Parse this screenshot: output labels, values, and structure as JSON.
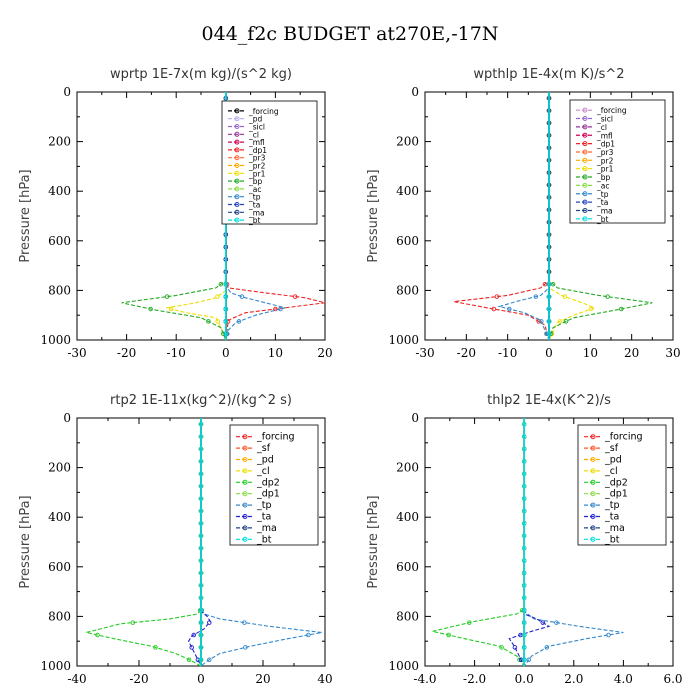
{
  "suptitle": "044_f2c  BUDGET at270E,-17N",
  "chart_data": [
    {
      "type": "line",
      "title": "wprtp   1E-7x(m kg)/(s^2 kg)",
      "ylabel": "Pressure [hPa]",
      "xlim": [
        -30,
        20
      ],
      "ylim": [
        1000,
        0
      ],
      "xticks": [
        "-30",
        "-20",
        "-10",
        "0",
        "10",
        "20"
      ],
      "yticks": [
        "0",
        "200",
        "400",
        "600",
        "800",
        "1000"
      ],
      "legend": "top-right",
      "series": [
        {
          "name": "_forcing",
          "color": "#000000",
          "x": [
            0,
            0
          ],
          "y": [
            0,
            1000
          ]
        },
        {
          "name": "_pd",
          "color": "#bbaaee",
          "x": [
            0,
            0
          ],
          "y": [
            0,
            1000
          ]
        },
        {
          "name": "_sicl",
          "color": "#9966cc",
          "x": [
            0,
            0
          ],
          "y": [
            0,
            1000
          ]
        },
        {
          "name": "_cl",
          "color": "#993399",
          "x": [
            0,
            0
          ],
          "y": [
            0,
            1000
          ]
        },
        {
          "name": "_mfl",
          "color": "#cc0055",
          "x": [
            0,
            0
          ],
          "y": [
            0,
            1000
          ]
        },
        {
          "name": "_dp1",
          "color": "#ee2222",
          "x": [
            0,
            0,
            0.5,
            8,
            16,
            20,
            12,
            4,
            0.5,
            0
          ],
          "y": [
            0,
            760,
            790,
            810,
            830,
            850,
            870,
            890,
            920,
            1000
          ]
        },
        {
          "name": "_pr3",
          "color": "#ff6633",
          "x": [
            0,
            0
          ],
          "y": [
            0,
            1000
          ]
        },
        {
          "name": "_pr2",
          "color": "#ffaa00",
          "x": [
            0,
            0
          ],
          "y": [
            0,
            1000
          ]
        },
        {
          "name": "_pr1",
          "color": "#eedd00",
          "x": [
            0,
            0,
            -2,
            -6,
            -12,
            -8,
            -2,
            -1,
            0
          ],
          "y": [
            0,
            800,
            830,
            850,
            870,
            890,
            910,
            950,
            1000
          ]
        },
        {
          "name": "_bp",
          "color": "#22aa22",
          "x": [
            0,
            0,
            -2,
            -10,
            -21,
            -14,
            -5,
            -1,
            0
          ],
          "y": [
            0,
            760,
            790,
            820,
            850,
            880,
            910,
            950,
            1000
          ]
        },
        {
          "name": "_ac",
          "color": "#88dd44",
          "x": [
            0,
            0
          ],
          "y": [
            0,
            1000
          ]
        },
        {
          "name": "_tp",
          "color": "#3388cc",
          "x": [
            0,
            0,
            1,
            4,
            8,
            12,
            6,
            2,
            0.5,
            0
          ],
          "y": [
            0,
            780,
            810,
            830,
            850,
            870,
            900,
            930,
            960,
            1000
          ]
        },
        {
          "name": "_ta",
          "color": "#2244bb",
          "x": [
            0,
            0
          ],
          "y": [
            0,
            1000
          ]
        },
        {
          "name": "_ma",
          "color": "#224488",
          "x": [
            0,
            0
          ],
          "y": [
            0,
            1000
          ]
        },
        {
          "name": "_bt",
          "color": "#00dddd",
          "x": [
            0,
            0
          ],
          "y": [
            0,
            1000
          ]
        }
      ]
    },
    {
      "type": "line",
      "title": "wpthlp   1E-4x(m K)/s^2",
      "ylabel": "Pressure [hPa]",
      "xlim": [
        -30,
        30
      ],
      "ylim": [
        1000,
        0
      ],
      "xticks": [
        "-30",
        "-20",
        "-10",
        "0",
        "10",
        "20",
        "30"
      ],
      "yticks": [
        "0",
        "200",
        "400",
        "600",
        "800",
        "1000"
      ],
      "legend": "top-right",
      "series": [
        {
          "name": "_forcing",
          "color": "#cc88cc",
          "x": [
            0,
            0
          ],
          "y": [
            0,
            1000
          ]
        },
        {
          "name": "_sicl",
          "color": "#9966cc",
          "x": [
            0,
            0
          ],
          "y": [
            0,
            1000
          ]
        },
        {
          "name": "_cl",
          "color": "#993399",
          "x": [
            0,
            0
          ],
          "y": [
            0,
            1000
          ]
        },
        {
          "name": "_mfl",
          "color": "#cc0055",
          "x": [
            0,
            0
          ],
          "y": [
            0,
            1000
          ]
        },
        {
          "name": "_dp1",
          "color": "#ee2222",
          "x": [
            0,
            0,
            -2,
            -10,
            -23,
            -15,
            -5,
            -1,
            0
          ],
          "y": [
            0,
            760,
            790,
            820,
            845,
            870,
            900,
            940,
            1000
          ]
        },
        {
          "name": "_pr3",
          "color": "#ff6633",
          "x": [
            0,
            0
          ],
          "y": [
            0,
            1000
          ]
        },
        {
          "name": "_pr2",
          "color": "#ffaa00",
          "x": [
            0,
            0
          ],
          "y": [
            0,
            1000
          ]
        },
        {
          "name": "_pr1",
          "color": "#eedd00",
          "x": [
            0,
            0,
            3,
            8,
            11,
            6,
            2,
            0
          ],
          "y": [
            0,
            790,
            820,
            850,
            870,
            900,
            930,
            1000
          ]
        },
        {
          "name": "_bp",
          "color": "#22aa22",
          "x": [
            0,
            0,
            2,
            12,
            25,
            16,
            6,
            1,
            0
          ],
          "y": [
            0,
            760,
            790,
            820,
            850,
            880,
            910,
            950,
            1000
          ]
        },
        {
          "name": "_ac",
          "color": "#88dd44",
          "x": [
            0,
            0
          ],
          "y": [
            0,
            1000
          ]
        },
        {
          "name": "_tp",
          "color": "#3388cc",
          "x": [
            0,
            0,
            -2,
            -8,
            -12,
            -6,
            -2,
            0
          ],
          "y": [
            0,
            790,
            820,
            845,
            865,
            890,
            920,
            1000
          ]
        },
        {
          "name": "_ta",
          "color": "#2244bb",
          "x": [
            0,
            0
          ],
          "y": [
            0,
            1000
          ]
        },
        {
          "name": "_ma",
          "color": "#224488",
          "x": [
            0,
            0
          ],
          "y": [
            0,
            1000
          ]
        },
        {
          "name": "_bt",
          "color": "#00dddd",
          "x": [
            0,
            0
          ],
          "y": [
            0,
            1000
          ]
        }
      ]
    },
    {
      "type": "line",
      "title": "rtp2   1E-11x(kg^2)/(kg^2 s)",
      "ylabel": "Pressure [hPa]",
      "xlim": [
        -40,
        40
      ],
      "ylim": [
        1000,
        0
      ],
      "xticks": [
        "-40",
        "-20",
        "0",
        "20",
        "40"
      ],
      "yticks": [
        "0",
        "200",
        "400",
        "600",
        "800",
        "1000"
      ],
      "legend": "top-right",
      "series": [
        {
          "name": "_forcing",
          "color": "#ee2222",
          "x": [
            0,
            0
          ],
          "y": [
            0,
            1000
          ]
        },
        {
          "name": "_sf",
          "color": "#ff5522",
          "x": [
            0,
            0
          ],
          "y": [
            0,
            1000
          ]
        },
        {
          "name": "_pd",
          "color": "#ffaa00",
          "x": [
            0,
            0
          ],
          "y": [
            0,
            1000
          ]
        },
        {
          "name": "_cl",
          "color": "#eedd00",
          "x": [
            0,
            0
          ],
          "y": [
            0,
            1000
          ]
        },
        {
          "name": "_dp2",
          "color": "#22cc22",
          "x": [
            0,
            0,
            -1,
            -10,
            -26,
            -37,
            -28,
            -16,
            -8,
            -3,
            0
          ],
          "y": [
            0,
            770,
            790,
            810,
            830,
            865,
            890,
            920,
            950,
            980,
            1000
          ]
        },
        {
          "name": "_dp1",
          "color": "#88dd44",
          "x": [
            0,
            0
          ],
          "y": [
            0,
            1000
          ]
        },
        {
          "name": "_tp",
          "color": "#3388cc",
          "x": [
            0,
            0,
            1,
            6,
            22,
            39,
            28,
            16,
            6,
            2,
            0
          ],
          "y": [
            0,
            770,
            790,
            810,
            840,
            865,
            890,
            920,
            950,
            980,
            1000
          ]
        },
        {
          "name": "_ta",
          "color": "#2222cc",
          "x": [
            0,
            0,
            2,
            3,
            1,
            -3,
            -4,
            -2,
            0
          ],
          "y": [
            0,
            780,
            800,
            820,
            850,
            880,
            900,
            950,
            1000
          ]
        },
        {
          "name": "_ma",
          "color": "#224488",
          "x": [
            0,
            0
          ],
          "y": [
            0,
            1000
          ]
        },
        {
          "name": "_bt",
          "color": "#00dddd",
          "x": [
            0,
            0
          ],
          "y": [
            0,
            1000
          ]
        }
      ]
    },
    {
      "type": "line",
      "title": "thlp2   1E-4x(K^2)/s",
      "ylabel": "Pressure [hPa]",
      "xlim": [
        -4,
        6
      ],
      "ylim": [
        1000,
        0
      ],
      "xticks": [
        "-4.0",
        "-2.0",
        "0.0",
        "2.0",
        "4.0",
        "6.0"
      ],
      "yticks": [
        "0",
        "200",
        "400",
        "600",
        "800",
        "1000"
      ],
      "legend": "top-right",
      "series": [
        {
          "name": "_forcing",
          "color": "#ee2222",
          "x": [
            0,
            0
          ],
          "y": [
            0,
            1000
          ]
        },
        {
          "name": "_sf",
          "color": "#ff5522",
          "x": [
            0,
            0
          ],
          "y": [
            0,
            1000
          ]
        },
        {
          "name": "_pd",
          "color": "#ffaa00",
          "x": [
            0,
            0
          ],
          "y": [
            0,
            1000
          ]
        },
        {
          "name": "_cl",
          "color": "#eedd00",
          "x": [
            0,
            0
          ],
          "y": [
            0,
            1000
          ]
        },
        {
          "name": "_dp2",
          "color": "#22cc22",
          "x": [
            0,
            0,
            -0.3,
            -2.0,
            -3.7,
            -2.4,
            -1.0,
            -0.3,
            0
          ],
          "y": [
            0,
            770,
            790,
            820,
            860,
            890,
            920,
            960,
            1000
          ]
        },
        {
          "name": "_dp1",
          "color": "#88dd44",
          "x": [
            0,
            0
          ],
          "y": [
            0,
            1000
          ]
        },
        {
          "name": "_tp",
          "color": "#3388cc",
          "x": [
            0,
            0,
            0.4,
            2.2,
            4.0,
            2.5,
            1.0,
            0.3,
            0
          ],
          "y": [
            0,
            780,
            810,
            840,
            865,
            890,
            920,
            960,
            1000
          ]
        },
        {
          "name": "_ta",
          "color": "#2222cc",
          "x": [
            0,
            0,
            0.5,
            1.0,
            0.3,
            -0.6,
            -0.4,
            0
          ],
          "y": [
            0,
            790,
            810,
            840,
            860,
            890,
            920,
            1000
          ]
        },
        {
          "name": "_ma",
          "color": "#224488",
          "x": [
            0,
            0
          ],
          "y": [
            0,
            1000
          ]
        },
        {
          "name": "_bt",
          "color": "#00dddd",
          "x": [
            0,
            0
          ],
          "y": [
            0,
            1000
          ]
        }
      ]
    }
  ]
}
